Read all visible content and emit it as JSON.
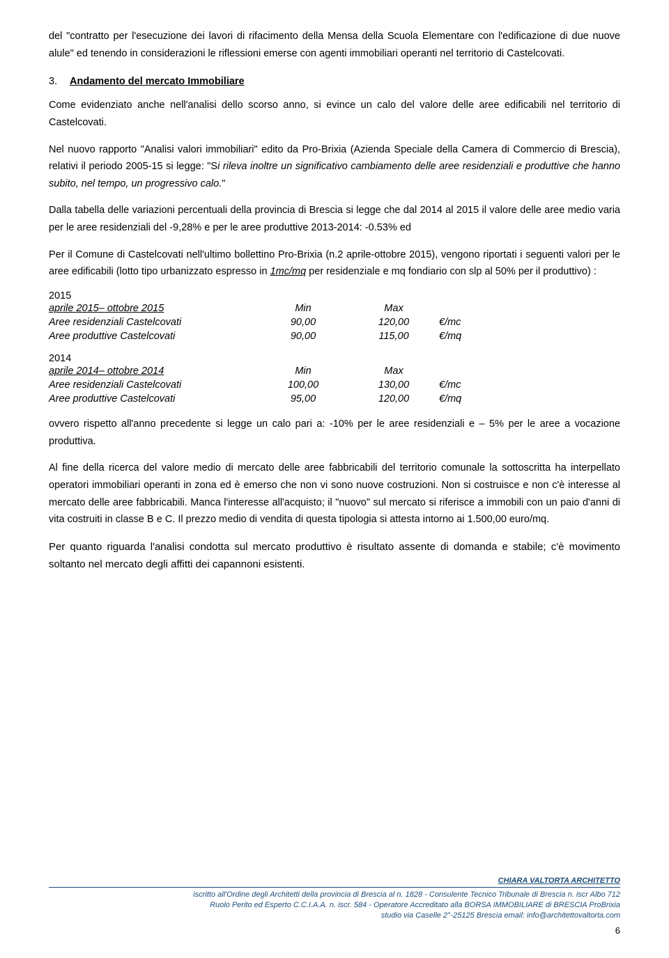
{
  "p1": "del \"contratto per l'esecuzione dei lavori di rifacimento della Mensa della Scuola Elementare con l'edificazione di due nuove alule\" ed tenendo in considerazioni le riflessioni emerse con agenti immobiliari operanti nel territorio di Castelcovati.",
  "section": {
    "num": "3.",
    "title": "Andamento del mercato Immobiliare"
  },
  "p2": "Come evidenziato anche nell'analisi dello scorso anno,  si evince un calo del valore delle aree edificabili nel territorio di Castelcovati.",
  "p3a": "Nel nuovo rapporto \"Analisi valori immobiliari\" edito da Pro-Brixia (Azienda Speciale della Camera di Commercio di Brescia), relativi il periodo 2005-15 si legge: \"S",
  "p3b": "i rileva inoltre un significativo cambiamento delle aree residenziali e produttive che hanno subito, nel tempo, un progressivo calo.",
  "p3c": "\"",
  "p4": "Dalla tabella delle variazioni percentuali della provincia di Brescia si legge che dal 2014 al 2015 il valore delle aree medio varia per le aree residenziali del -9,28%   e per le aree produttive 2013-2014: -0.53% ed",
  "p5a": "Per il Comune di Castelcovati  nell'ultimo bollettino Pro-Brixia (n.2 aprile-ottobre 2015),  vengono riportati  i seguenti valori per le aree edificabili (lotto tipo urbanizzato espresso in ",
  "p5b": "1mc/mq",
  "p5c": " per residenziale e mq fondiario con slp al 50% per il produttivo) :",
  "t2015": {
    "year": "2015",
    "period": "aprile 2015– ottobre 2015",
    "hmin": "Min",
    "hmax": "Max",
    "rows": [
      {
        "label": "Aree residenziali Castelcovati",
        "min": "90,00",
        "max": "120,00",
        "unit": "€/mc"
      },
      {
        "label": "Aree produttive   Castelcovati",
        "min": "90,00",
        "max": "115,00",
        "unit": "€/mq"
      }
    ]
  },
  "t2014": {
    "year": "2014",
    "period": "aprile 2014– ottobre 2014",
    "hmin": "Min",
    "hmax": "Max",
    "rows": [
      {
        "label": "Aree residenziali Castelcovati",
        "min": "100,00",
        "max": "130,00",
        "unit": "€/mc"
      },
      {
        "label": "Aree produttive   Castelcovati",
        "min": "95,00",
        "max": "120,00",
        "unit": "€/mq"
      }
    ]
  },
  "p6": "ovvero rispetto all'anno precedente si legge un calo pari a: -10% per le aree residenziali e – 5% per le aree a vocazione produttiva.",
  "p7": "Al fine della ricerca del valore medio di mercato delle aree fabbricabili del territorio comunale la sottoscritta ha interpellato operatori immobiliari operanti in zona ed è emerso che non vi sono nuove costruzioni. Non si costruisce e non c'è interesse al mercato delle aree fabbricabili.   Manca l'interesse all'acquisto; il \"nuovo\" sul mercato si riferisce a immobili con un paio d'anni di vita costruiti in classe B e C. Il prezzo medio di vendita di questa tipologia si attesta intorno ai 1.500,00 euro/mq.",
  "p8": "Per quanto riguarda l'analisi condotta sul mercato produttivo è risultato assente di domanda e stabile; c'è movimento soltanto nel mercato degli affitti dei capannoni esistenti.",
  "footer": {
    "name": "CHIARA VALTORTA ARCHITETTO",
    "l1": "iscritto all'Ordine degli Architetti della provincia di Brescia al n. 1828  -  Consulente Tecnico Tribunale di Brescia n. iscr Albo 712",
    "l2": "Ruolo Perito ed Esperto C.C.I.A.A. n. iscr. 584 - Operatore Accreditato alla BORSA IMMOBILIARE di BRESCIA ProBrixia",
    "l3": "studio via Caselle 2°-25125 Brescia email: info@architettovaltorta.com",
    "page": "6"
  }
}
